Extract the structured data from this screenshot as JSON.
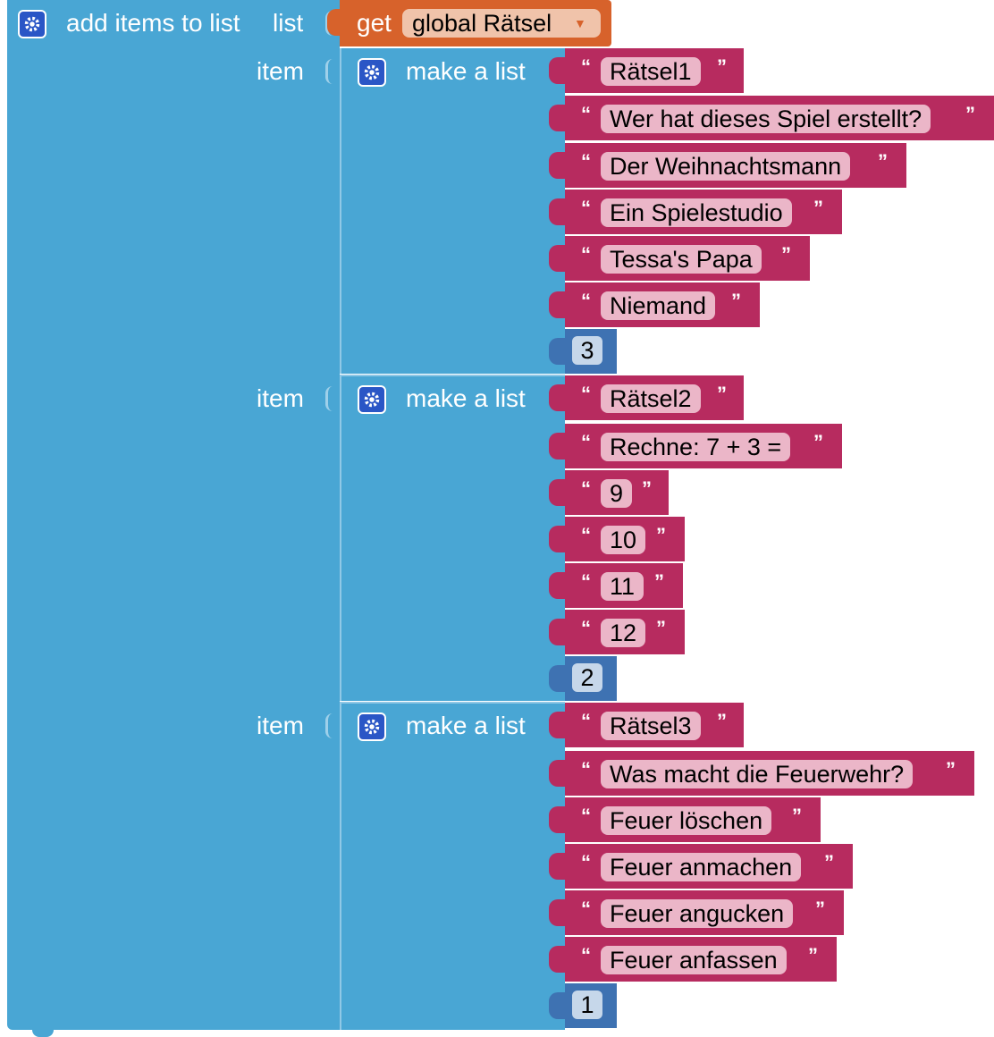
{
  "outer_block": {
    "label": "add items to list",
    "list_label": "list",
    "item_label": "item",
    "color": "#49a6d4"
  },
  "getter": {
    "label": "get",
    "variable": "global Rätsel",
    "color": "#d7622b"
  },
  "groups": [
    {
      "label": "make a list",
      "strings": [
        "Rätsel1",
        "Wer hat dieses Spiel erstellt?",
        "Der Weihnachtsmann",
        "Ein Spielestudio",
        "Tessa's Papa",
        "Niemand"
      ],
      "number": "3"
    },
    {
      "label": "make a list",
      "strings": [
        "Rätsel2",
        "Rechne: 7 + 3 =",
        "9",
        "10",
        "11",
        "12"
      ],
      "number": "2"
    },
    {
      "label": "make a list",
      "strings": [
        "Rätsel3",
        "Was macht die Feuerwehr?",
        "Feuer löschen",
        "Feuer anmachen",
        "Feuer angucken",
        "Feuer anfassen"
      ],
      "number": "1"
    }
  ],
  "quote_open": "“",
  "quote_close": "”",
  "icons": {
    "mutator": "gear-icon",
    "dropdown": "dropdown-arrow-icon"
  },
  "colors": {
    "text_block": "#b72b5f",
    "number_block": "#3e72b2",
    "gear": "#2a56c6"
  }
}
